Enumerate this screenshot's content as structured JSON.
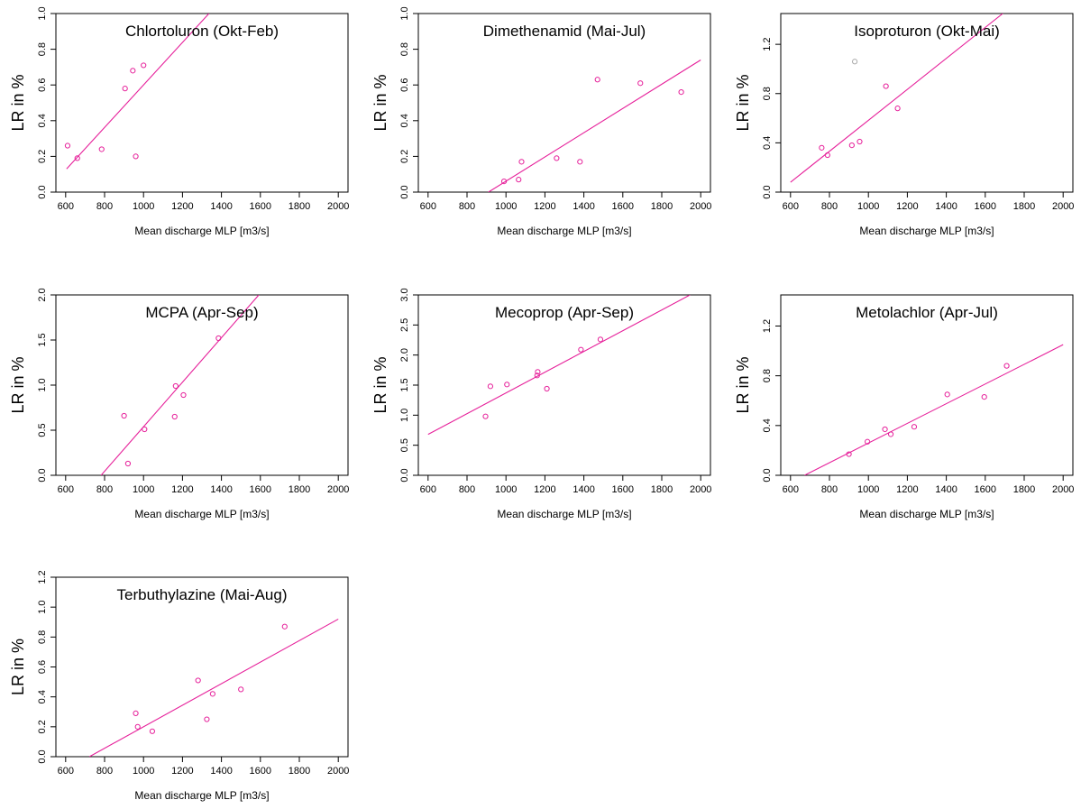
{
  "figure": {
    "xlabel": "Mean discharge MLP [m3/s]",
    "ylabel": "LR in %"
  },
  "chart_data": [
    {
      "type": "scatter",
      "title": "Chlortoluron (Okt-Feb)",
      "xlabel": "Mean discharge MLP [m3/s]",
      "ylabel": "LR in %",
      "xlim": [
        550,
        2050
      ],
      "ylim": [
        0,
        1.0
      ],
      "xticks": [
        600,
        800,
        1000,
        1200,
        1400,
        1600,
        1800,
        2000
      ],
      "yticks": [
        "0.0",
        "0.2",
        "0.4",
        "0.6",
        "0.8",
        "1.0"
      ],
      "points": [
        {
          "x": 610,
          "y": 0.26,
          "color": "#e6209a"
        },
        {
          "x": 660,
          "y": 0.19,
          "color": "#e6209a"
        },
        {
          "x": 785,
          "y": 0.24,
          "color": "#e6209a"
        },
        {
          "x": 905,
          "y": 0.58,
          "color": "#e6209a"
        },
        {
          "x": 945,
          "y": 0.68,
          "color": "#e6209a"
        },
        {
          "x": 960,
          "y": 0.2,
          "color": "#e6209a"
        },
        {
          "x": 1000,
          "y": 0.71,
          "color": "#e6209a"
        }
      ],
      "fit": {
        "x": [
          605,
          1336
        ],
        "y": [
          0.13,
          1.0
        ]
      },
      "line_color": "#e6209a"
    },
    {
      "type": "scatter",
      "title": "Dimethenamid (Mai-Jul)",
      "xlabel": "Mean discharge MLP [m3/s]",
      "ylabel": "LR in %",
      "xlim": [
        550,
        2050
      ],
      "ylim": [
        0,
        1.0
      ],
      "xticks": [
        600,
        800,
        1000,
        1200,
        1400,
        1600,
        1800,
        2000
      ],
      "yticks": [
        "0.0",
        "0.2",
        "0.4",
        "0.6",
        "0.8",
        "1.0"
      ],
      "points": [
        {
          "x": 990,
          "y": 0.06,
          "color": "#e6209a"
        },
        {
          "x": 1065,
          "y": 0.07,
          "color": "#e6209a"
        },
        {
          "x": 1080,
          "y": 0.17,
          "color": "#e6209a"
        },
        {
          "x": 1260,
          "y": 0.19,
          "color": "#e6209a"
        },
        {
          "x": 1380,
          "y": 0.17,
          "color": "#e6209a"
        },
        {
          "x": 1470,
          "y": 0.63,
          "color": "#e6209a"
        },
        {
          "x": 1690,
          "y": 0.61,
          "color": "#e6209a"
        },
        {
          "x": 1900,
          "y": 0.56,
          "color": "#e6209a"
        }
      ],
      "fit": {
        "x": [
          910,
          2000
        ],
        "y": [
          0.0,
          0.74
        ]
      },
      "line_color": "#e6209a"
    },
    {
      "type": "scatter",
      "title": "Isoproturon (Okt-Mai)",
      "xlabel": "Mean discharge MLP [m3/s]",
      "ylabel": "LR in %",
      "xlim": [
        550,
        2050
      ],
      "ylim": [
        0,
        1.45
      ],
      "xticks": [
        600,
        800,
        1000,
        1200,
        1400,
        1600,
        1800,
        2000
      ],
      "yticks": [
        "0.0",
        "0.4",
        "0.8",
        "1.2"
      ],
      "points": [
        {
          "x": 760,
          "y": 0.36,
          "color": "#e6209a"
        },
        {
          "x": 790,
          "y": 0.3,
          "color": "#e6209a"
        },
        {
          "x": 915,
          "y": 0.38,
          "color": "#e6209a"
        },
        {
          "x": 930,
          "y": 1.06,
          "color": "#aaaaaa"
        },
        {
          "x": 955,
          "y": 0.41,
          "color": "#e6209a"
        },
        {
          "x": 1090,
          "y": 0.86,
          "color": "#e6209a"
        },
        {
          "x": 1150,
          "y": 0.68,
          "color": "#e6209a"
        }
      ],
      "fit": {
        "x": [
          600,
          1690
        ],
        "y": [
          0.08,
          1.45
        ]
      },
      "line_color": "#e6209a"
    },
    {
      "type": "scatter",
      "title": "MCPA (Apr-Sep)",
      "xlabel": "Mean discharge MLP [m3/s]",
      "ylabel": "LR in %",
      "xlim": [
        550,
        2050
      ],
      "ylim": [
        0,
        2.0
      ],
      "xticks": [
        600,
        800,
        1000,
        1200,
        1400,
        1600,
        1800,
        2000
      ],
      "yticks": [
        "0.0",
        "0.5",
        "1.0",
        "1.5",
        "2.0"
      ],
      "points": [
        {
          "x": 900,
          "y": 0.66,
          "color": "#e6209a"
        },
        {
          "x": 920,
          "y": 0.13,
          "color": "#e6209a"
        },
        {
          "x": 1005,
          "y": 0.51,
          "color": "#e6209a"
        },
        {
          "x": 1160,
          "y": 0.65,
          "color": "#e6209a"
        },
        {
          "x": 1165,
          "y": 0.99,
          "color": "#e6209a"
        },
        {
          "x": 1205,
          "y": 0.89,
          "color": "#e6209a"
        },
        {
          "x": 1385,
          "y": 1.52,
          "color": "#e6209a"
        }
      ],
      "fit": {
        "x": [
          782,
          1592
        ],
        "y": [
          0.0,
          2.0
        ]
      },
      "line_color": "#e6209a"
    },
    {
      "type": "scatter",
      "title": "Mecoprop (Apr-Sep)",
      "xlabel": "Mean discharge MLP [m3/s]",
      "ylabel": "LR in %",
      "xlim": [
        550,
        2050
      ],
      "ylim": [
        0,
        3.0
      ],
      "xticks": [
        600,
        800,
        1000,
        1200,
        1400,
        1600,
        1800,
        2000
      ],
      "yticks": [
        "0.0",
        "0.5",
        "1.0",
        "1.5",
        "2.0",
        "2.5",
        "3.0"
      ],
      "points": [
        {
          "x": 895,
          "y": 0.98,
          "color": "#e6209a"
        },
        {
          "x": 920,
          "y": 1.48,
          "color": "#e6209a"
        },
        {
          "x": 1005,
          "y": 1.51,
          "color": "#e6209a"
        },
        {
          "x": 1160,
          "y": 1.66,
          "color": "#e6209a"
        },
        {
          "x": 1163,
          "y": 1.72,
          "color": "#e6209a"
        },
        {
          "x": 1210,
          "y": 1.44,
          "color": "#e6209a"
        },
        {
          "x": 1385,
          "y": 2.09,
          "color": "#e6209a"
        },
        {
          "x": 1485,
          "y": 2.26,
          "color": "#e6209a"
        }
      ],
      "fit": {
        "x": [
          600,
          1945
        ],
        "y": [
          0.68,
          3.0
        ]
      },
      "line_color": "#e6209a"
    },
    {
      "type": "scatter",
      "title": "Metolachlor (Apr-Jul)",
      "xlabel": "Mean discharge MLP [m3/s]",
      "ylabel": "LR in %",
      "xlim": [
        550,
        2050
      ],
      "ylim": [
        0,
        1.45
      ],
      "xticks": [
        600,
        800,
        1000,
        1200,
        1400,
        1600,
        1800,
        2000
      ],
      "yticks": [
        "0.0",
        "0.4",
        "0.8",
        "1.2"
      ],
      "points": [
        {
          "x": 900,
          "y": 0.17,
          "color": "#e6209a"
        },
        {
          "x": 995,
          "y": 0.27,
          "color": "#e6209a"
        },
        {
          "x": 1085,
          "y": 0.37,
          "color": "#e6209a"
        },
        {
          "x": 1115,
          "y": 0.33,
          "color": "#e6209a"
        },
        {
          "x": 1235,
          "y": 0.39,
          "color": "#e6209a"
        },
        {
          "x": 1405,
          "y": 0.65,
          "color": "#e6209a"
        },
        {
          "x": 1595,
          "y": 0.63,
          "color": "#e6209a"
        },
        {
          "x": 1710,
          "y": 0.88,
          "color": "#e6209a"
        }
      ],
      "fit": {
        "x": [
          672,
          2000
        ],
        "y": [
          0.0,
          1.05
        ]
      },
      "line_color": "#e6209a"
    },
    {
      "type": "scatter",
      "title": "Terbuthylazine (Mai-Aug)",
      "xlabel": "Mean discharge MLP [m3/s]",
      "ylabel": "LR in %",
      "xlim": [
        550,
        2050
      ],
      "ylim": [
        0,
        1.2
      ],
      "xticks": [
        600,
        800,
        1000,
        1200,
        1400,
        1600,
        1800,
        2000
      ],
      "yticks": [
        "0.0",
        "0.2",
        "0.4",
        "0.6",
        "0.8",
        "1.0",
        "1.2"
      ],
      "points": [
        {
          "x": 960,
          "y": 0.29,
          "color": "#e6209a"
        },
        {
          "x": 970,
          "y": 0.2,
          "color": "#e6209a"
        },
        {
          "x": 1045,
          "y": 0.17,
          "color": "#e6209a"
        },
        {
          "x": 1280,
          "y": 0.51,
          "color": "#e6209a"
        },
        {
          "x": 1325,
          "y": 0.25,
          "color": "#e6209a"
        },
        {
          "x": 1355,
          "y": 0.42,
          "color": "#e6209a"
        },
        {
          "x": 1500,
          "y": 0.45,
          "color": "#e6209a"
        },
        {
          "x": 1725,
          "y": 0.87,
          "color": "#e6209a"
        }
      ],
      "fit": {
        "x": [
          722,
          2000
        ],
        "y": [
          0.0,
          0.92
        ]
      },
      "line_color": "#e6209a"
    }
  ]
}
